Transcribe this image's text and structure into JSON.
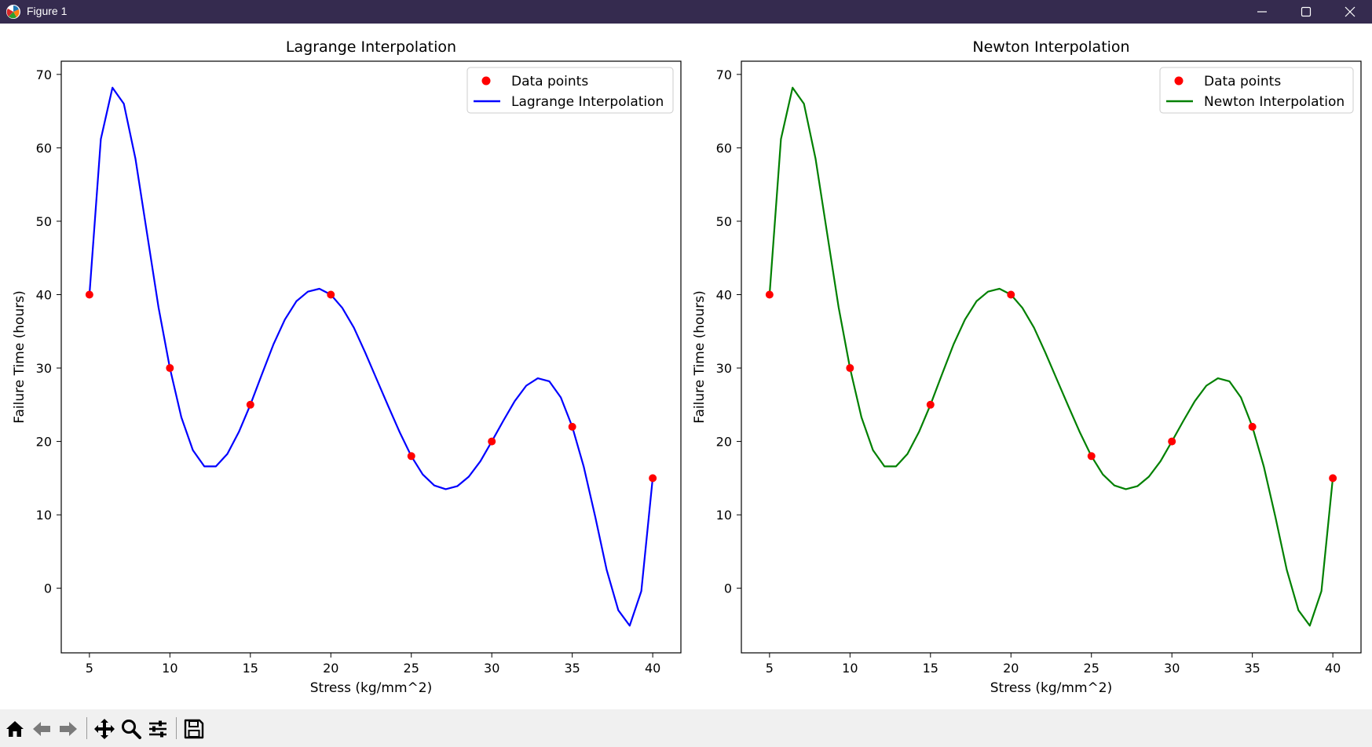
{
  "window": {
    "title": "Figure 1"
  },
  "charts": [
    {
      "title": "Lagrange Interpolation",
      "xlabel": "Stress (kg/mm^2)",
      "ylabel": "Failure Time (hours)",
      "legend": [
        "Data points",
        "Lagrange Interpolation"
      ],
      "xticks": [
        "5",
        "10",
        "15",
        "20",
        "25",
        "30",
        "35",
        "40"
      ],
      "yticks": [
        "0",
        "10",
        "20",
        "30",
        "40",
        "50",
        "60",
        "70"
      ]
    },
    {
      "title": "Newton Interpolation",
      "xlabel": "Stress (kg/mm^2)",
      "ylabel": "Failure Time (hours)",
      "legend": [
        "Data points",
        "Newton Interpolation"
      ],
      "xticks": [
        "5",
        "10",
        "15",
        "20",
        "25",
        "30",
        "35",
        "40"
      ],
      "yticks": [
        "0",
        "10",
        "20",
        "30",
        "40",
        "50",
        "60",
        "70"
      ]
    }
  ],
  "chart_data": [
    {
      "type": "line",
      "title": "Lagrange Interpolation",
      "xlabel": "Stress (kg/mm^2)",
      "ylabel": "Failure Time (hours)",
      "xlim": [
        3.25,
        41.75
      ],
      "ylim": [
        -8.8,
        71.8
      ],
      "legend_position": "upper right",
      "grid": false,
      "series": [
        {
          "name": "Data points",
          "marker": "o",
          "color": "#ff0000",
          "x": [
            5,
            10,
            15,
            20,
            25,
            30,
            35,
            40
          ],
          "y": [
            40,
            30,
            25,
            40,
            18,
            20,
            22,
            15
          ]
        },
        {
          "name": "Lagrange Interpolation",
          "color": "#0000ff",
          "x": [
            5,
            5.71,
            6.43,
            7.14,
            7.86,
            8.57,
            9.29,
            10,
            10.71,
            11.43,
            12.14,
            12.86,
            13.57,
            14.29,
            15,
            15.71,
            16.43,
            17.14,
            17.86,
            18.57,
            19.29,
            20,
            20.71,
            21.43,
            22.14,
            22.86,
            23.57,
            24.29,
            25,
            25.71,
            26.43,
            27.14,
            27.86,
            28.57,
            29.29,
            30,
            30.71,
            31.43,
            32.14,
            32.86,
            33.57,
            34.29,
            35,
            35.71,
            36.43,
            37.14,
            37.86,
            38.57,
            39.29,
            40
          ],
          "y": [
            40,
            61.2,
            68.2,
            66,
            58.5,
            48.5,
            38.3,
            30,
            23.3,
            18.8,
            16.6,
            16.6,
            18.3,
            21.3,
            25,
            29.1,
            33.2,
            36.6,
            39.1,
            40.4,
            40.8,
            40,
            38.2,
            35.5,
            32.1,
            28.4,
            24.8,
            21.2,
            18,
            15.5,
            14,
            13.5,
            13.9,
            15.2,
            17.3,
            20,
            22.8,
            25.5,
            27.6,
            28.6,
            28.2,
            26,
            22,
            16.6,
            9.7,
            2.5,
            -3,
            -5.1,
            -0.4,
            15
          ]
        }
      ]
    },
    {
      "type": "line",
      "title": "Newton Interpolation",
      "xlabel": "Stress (kg/mm^2)",
      "ylabel": "Failure Time (hours)",
      "xlim": [
        3.25,
        41.75
      ],
      "ylim": [
        -8.8,
        71.8
      ],
      "legend_position": "upper right",
      "grid": false,
      "series": [
        {
          "name": "Data points",
          "marker": "o",
          "color": "#ff0000",
          "x": [
            5,
            10,
            15,
            20,
            25,
            30,
            35,
            40
          ],
          "y": [
            40,
            30,
            25,
            40,
            18,
            20,
            22,
            15
          ]
        },
        {
          "name": "Newton Interpolation",
          "color": "#008000",
          "x": [
            5,
            5.71,
            6.43,
            7.14,
            7.86,
            8.57,
            9.29,
            10,
            10.71,
            11.43,
            12.14,
            12.86,
            13.57,
            14.29,
            15,
            15.71,
            16.43,
            17.14,
            17.86,
            18.57,
            19.29,
            20,
            20.71,
            21.43,
            22.14,
            22.86,
            23.57,
            24.29,
            25,
            25.71,
            26.43,
            27.14,
            27.86,
            28.57,
            29.29,
            30,
            30.71,
            31.43,
            32.14,
            32.86,
            33.57,
            34.29,
            35,
            35.71,
            36.43,
            37.14,
            37.86,
            38.57,
            39.29,
            40
          ],
          "y": [
            40,
            61.2,
            68.2,
            66,
            58.5,
            48.5,
            38.3,
            30,
            23.3,
            18.8,
            16.6,
            16.6,
            18.3,
            21.3,
            25,
            29.1,
            33.2,
            36.6,
            39.1,
            40.4,
            40.8,
            40,
            38.2,
            35.5,
            32.1,
            28.4,
            24.8,
            21.2,
            18,
            15.5,
            14,
            13.5,
            13.9,
            15.2,
            17.3,
            20,
            22.8,
            25.5,
            27.6,
            28.6,
            28.2,
            26,
            22,
            16.6,
            9.7,
            2.5,
            -3,
            -5.1,
            -0.4,
            15
          ]
        }
      ]
    }
  ],
  "toolbar": {
    "tools": [
      {
        "name": "home-icon"
      },
      {
        "name": "back-arrow-icon"
      },
      {
        "name": "forward-arrow-icon"
      },
      {
        "name": "pan-icon"
      },
      {
        "name": "zoom-icon"
      },
      {
        "name": "configure-subplots-icon"
      },
      {
        "name": "save-icon"
      }
    ]
  }
}
